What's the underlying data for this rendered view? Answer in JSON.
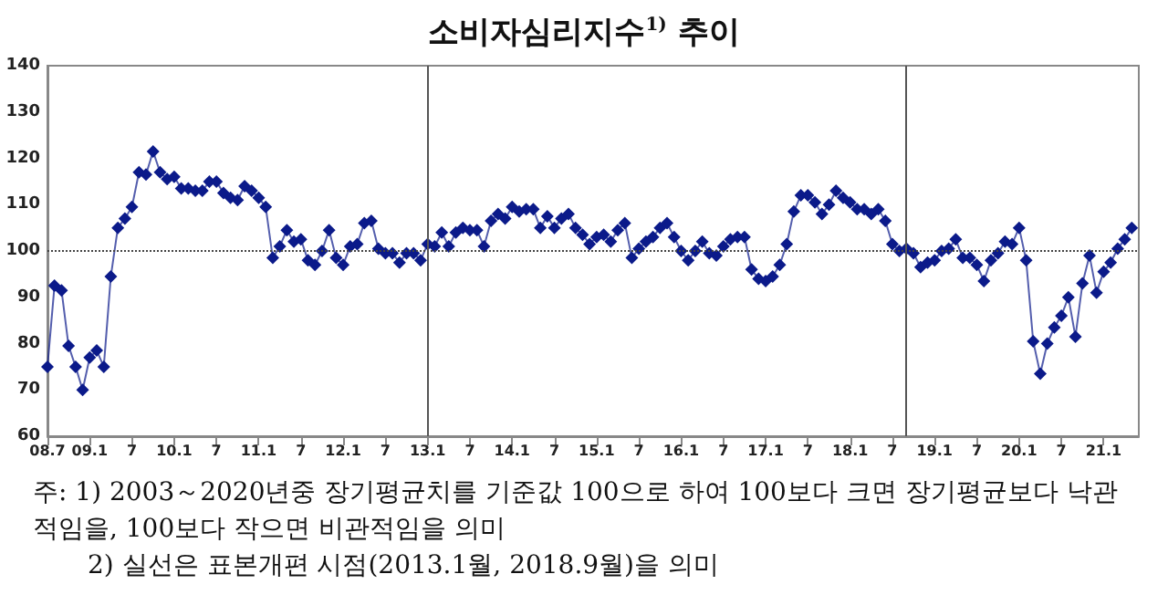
{
  "chart_data": {
    "type": "line",
    "title": "소비자심리지수$^{1)}$ 추이",
    "x": [
      "2008-07",
      "2008-08",
      "2008-09",
      "2008-10",
      "2008-11",
      "2008-12",
      "2009-01",
      "2009-02",
      "2009-03",
      "2009-04",
      "2009-05",
      "2009-06",
      "2009-07",
      "2009-08",
      "2009-09",
      "2009-10",
      "2009-11",
      "2009-12",
      "2010-01",
      "2010-02",
      "2010-03",
      "2010-04",
      "2010-05",
      "2010-06",
      "2010-07",
      "2010-08",
      "2010-09",
      "2010-10",
      "2010-11",
      "2010-12",
      "2011-01",
      "2011-02",
      "2011-03",
      "2011-04",
      "2011-05",
      "2011-06",
      "2011-07",
      "2011-08",
      "2011-09",
      "2011-10",
      "2011-11",
      "2011-12",
      "2012-01",
      "2012-02",
      "2012-03",
      "2012-04",
      "2012-05",
      "2012-06",
      "2012-07",
      "2012-08",
      "2012-09",
      "2012-10",
      "2012-11",
      "2012-12",
      "2013-01",
      "2013-02",
      "2013-03",
      "2013-04",
      "2013-05",
      "2013-06",
      "2013-07",
      "2013-08",
      "2013-09",
      "2013-10",
      "2013-11",
      "2013-12",
      "2014-01",
      "2014-02",
      "2014-03",
      "2014-04",
      "2014-05",
      "2014-06",
      "2014-07",
      "2014-08",
      "2014-09",
      "2014-10",
      "2014-11",
      "2014-12",
      "2015-01",
      "2015-02",
      "2015-03",
      "2015-04",
      "2015-05",
      "2015-06",
      "2015-07",
      "2015-08",
      "2015-09",
      "2015-10",
      "2015-11",
      "2015-12",
      "2016-01",
      "2016-02",
      "2016-03",
      "2016-04",
      "2016-05",
      "2016-06",
      "2016-07",
      "2016-08",
      "2016-09",
      "2016-10",
      "2016-11",
      "2016-12",
      "2017-01",
      "2017-02",
      "2017-03",
      "2017-04",
      "2017-05",
      "2017-06",
      "2017-07",
      "2017-08",
      "2017-09",
      "2017-10",
      "2017-11",
      "2017-12",
      "2018-01",
      "2018-02",
      "2018-03",
      "2018-04",
      "2018-05",
      "2018-06",
      "2018-07",
      "2018-08",
      "2018-09",
      "2018-10",
      "2018-11",
      "2018-12",
      "2019-01",
      "2019-02",
      "2019-03",
      "2019-04",
      "2019-05",
      "2019-06",
      "2019-07",
      "2019-08",
      "2019-09",
      "2019-10",
      "2019-11",
      "2019-12",
      "2020-01",
      "2020-02",
      "2020-03",
      "2020-04",
      "2020-05",
      "2020-06",
      "2020-07",
      "2020-08",
      "2020-09",
      "2020-10",
      "2020-11",
      "2020-12",
      "2021-01",
      "2021-02",
      "2021-03",
      "2021-04",
      "2021-05"
    ],
    "series": [
      {
        "color": "#0b1a8a",
        "values": [
          75,
          92.5,
          91.5,
          79.5,
          75,
          70,
          77,
          78.5,
          75,
          94.5,
          105,
          107,
          109.5,
          117,
          116.5,
          121.5,
          117,
          115.5,
          116,
          113.5,
          113.5,
          113,
          113,
          115,
          115,
          112.5,
          111.5,
          111,
          114,
          113,
          111.5,
          109.5,
          98.5,
          101,
          104.5,
          102,
          102.5,
          98,
          97,
          100,
          104.5,
          98.5,
          97,
          101,
          101.5,
          106,
          106.5,
          100.5,
          99.5,
          99.5,
          97.5,
          99.5,
          99.5,
          98,
          101.5,
          101,
          104,
          101,
          104,
          105,
          104.5,
          104.5,
          101,
          106.5,
          108,
          107,
          109.5,
          108.5,
          109,
          109,
          105,
          107.5,
          105,
          107,
          108,
          105,
          103.5,
          101.5,
          103,
          103.5,
          102,
          104.5,
          106,
          98.5,
          100.5,
          102,
          103,
          105,
          106,
          103,
          100,
          98,
          100,
          102,
          99.5,
          99,
          101,
          102.5,
          103,
          103,
          96,
          94,
          93.5,
          94.5,
          97,
          101.5,
          108.5,
          112,
          112,
          110.5,
          108,
          110,
          113,
          111.5,
          110.5,
          109,
          109,
          108,
          109,
          106.5,
          101.5,
          100,
          100.5,
          99.5,
          96.5,
          97.5,
          98,
          100,
          100.5,
          102.5,
          98.5,
          98.5,
          97,
          93.5,
          98,
          99.5,
          102,
          101.5,
          105,
          98,
          80.5,
          73.5,
          80,
          83.5,
          86,
          90,
          81.5,
          93,
          99,
          91,
          95.5,
          97.5,
          100.5,
          102.5,
          105
        ]
      }
    ],
    "xlim": [
      "2008-07",
      "2021-06"
    ],
    "xticks": [
      {
        "value": "2008-07",
        "label": "08.7"
      },
      {
        "value": "2009-01",
        "label": "09.1"
      },
      {
        "value": "2009-07",
        "label": "7"
      },
      {
        "value": "2010-01",
        "label": "10.1"
      },
      {
        "value": "2010-07",
        "label": "7"
      },
      {
        "value": "2011-01",
        "label": "11.1"
      },
      {
        "value": "2011-07",
        "label": "7"
      },
      {
        "value": "2012-01",
        "label": "12.1"
      },
      {
        "value": "2012-07",
        "label": "7"
      },
      {
        "value": "2013-01",
        "label": "13.1"
      },
      {
        "value": "2013-07",
        "label": "7"
      },
      {
        "value": "2014-01",
        "label": "14.1"
      },
      {
        "value": "2014-07",
        "label": "7"
      },
      {
        "value": "2015-01",
        "label": "15.1"
      },
      {
        "value": "2015-07",
        "label": "7"
      },
      {
        "value": "2016-01",
        "label": "16.1"
      },
      {
        "value": "2016-07",
        "label": "7"
      },
      {
        "value": "2017-01",
        "label": "17.1"
      },
      {
        "value": "2017-07",
        "label": "7"
      },
      {
        "value": "2018-01",
        "label": "18.1"
      },
      {
        "value": "2018-07",
        "label": "7"
      },
      {
        "value": "2019-01",
        "label": "19.1"
      },
      {
        "value": "2019-07",
        "label": "7"
      },
      {
        "value": "2020-01",
        "label": "20.1"
      },
      {
        "value": "2020-07",
        "label": "7"
      },
      {
        "value": "2021-01",
        "label": "21.1"
      }
    ],
    "ylim": [
      60,
      140
    ],
    "yticks": [
      60,
      70,
      80,
      90,
      100,
      110,
      120,
      130,
      140
    ],
    "grid": false,
    "marker": "diamond",
    "line_style": "solid",
    "ref_lines": [
      {
        "axis": "y",
        "value": 100,
        "line_style": "dotted",
        "color": "#444444"
      },
      {
        "axis": "x",
        "value": "2013-01",
        "line_style": "solid",
        "color": "#555555"
      },
      {
        "axis": "x",
        "value": "2018-09",
        "line_style": "solid",
        "color": "#555555"
      }
    ],
    "annotations": [
      "주: 1) 2003～2020년중 장기평균치를 기준값 100으로 하여 100보다 크면 장기평균보다 낙관적임을, 100보다 작으면 비관적임을 의미",
      "2) 실선은 표본개편 시점(2013.1월, 2018.9월)을 의미"
    ]
  }
}
